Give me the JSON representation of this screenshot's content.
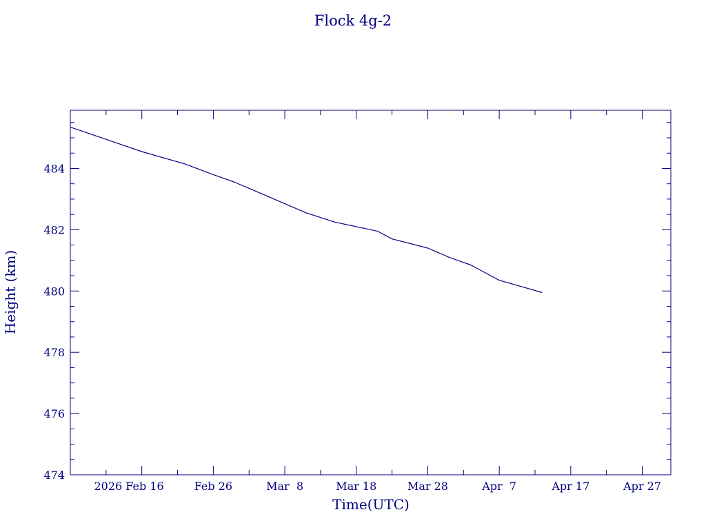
{
  "chart_data": {
    "type": "line",
    "title": "Flock 4g-2",
    "xlabel": "Time(UTC)",
    "ylabel": "Height (km)",
    "x_unit": "date (UTC)",
    "xlim": [
      "2026-02-06",
      "2026-05-01"
    ],
    "ylim": [
      474,
      485.9
    ],
    "x_tick_dates": [
      "2026-02-16",
      "2026-02-26",
      "2026-03-08",
      "2026-03-18",
      "2026-03-28",
      "2026-04-07",
      "2026-04-17",
      "2026-04-27"
    ],
    "x_tick_labels": [
      "2026 Feb 16",
      "Feb 26",
      "Mar  8",
      "Mar 18",
      "Mar 28",
      "Apr  7",
      "Apr 17",
      "Apr 27"
    ],
    "y_ticks": [
      474,
      476,
      478,
      480,
      482,
      484
    ],
    "y_tick_labels": [
      "474",
      "476",
      "478",
      "480",
      "482",
      "484"
    ],
    "grid": false,
    "legend": "none",
    "series": [
      {
        "color": "#000080",
        "points": [
          [
            "2026-02-06",
            485.35
          ],
          [
            "2026-02-11",
            484.95
          ],
          [
            "2026-02-16",
            484.55
          ],
          [
            "2026-02-19",
            484.35
          ],
          [
            "2026-02-22",
            484.15
          ],
          [
            "2026-02-26",
            483.8
          ],
          [
            "2026-03-01",
            483.55
          ],
          [
            "2026-03-05",
            483.15
          ],
          [
            "2026-03-08",
            482.85
          ],
          [
            "2026-03-11",
            482.55
          ],
          [
            "2026-03-15",
            482.25
          ],
          [
            "2026-03-18",
            482.1
          ],
          [
            "2026-03-21",
            481.95
          ],
          [
            "2026-03-23",
            481.7
          ],
          [
            "2026-03-28",
            481.4
          ],
          [
            "2026-03-31",
            481.1
          ],
          [
            "2026-04-03",
            480.85
          ],
          [
            "2026-04-05",
            480.6
          ],
          [
            "2026-04-07",
            480.35
          ],
          [
            "2026-04-10",
            480.15
          ],
          [
            "2026-04-13",
            479.95
          ]
        ]
      }
    ]
  }
}
